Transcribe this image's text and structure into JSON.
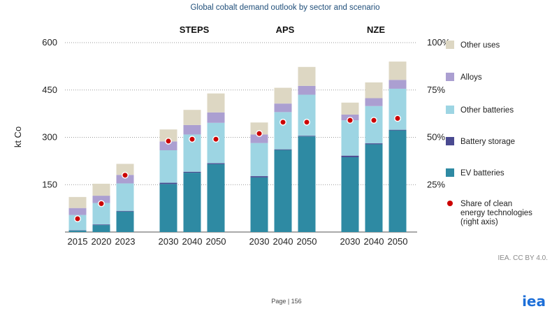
{
  "chart_data": {
    "type": "bar",
    "stacked": true,
    "title": "Global cobalt demand outlook by sector and scenario",
    "ylabel": "kt Co",
    "ylim": [
      0,
      600
    ],
    "y_ticks": [
      "150",
      "300",
      "450",
      "600"
    ],
    "y2lim": [
      0,
      1
    ],
    "y2_ticks": [
      "25%",
      "50%",
      "75%",
      "100%"
    ],
    "groups": [
      {
        "name": "",
        "categories": [
          "2015",
          "2020",
          "2023"
        ]
      },
      {
        "name": "STEPS",
        "categories": [
          "2030",
          "2040",
          "2050"
        ]
      },
      {
        "name": "APS",
        "categories": [
          "2030",
          "2040",
          "2050"
        ]
      },
      {
        "name": "NZE",
        "categories": [
          "2030",
          "2040",
          "2050"
        ]
      }
    ],
    "series": [
      {
        "name": "EV batteries",
        "color": "#2e8aa3",
        "values": [
          5,
          22,
          65,
          152,
          188,
          215,
          173,
          260,
          303,
          237,
          278,
          322
        ]
      },
      {
        "name": "Battery storage",
        "color": "#4a4a90",
        "values": [
          1,
          2,
          2,
          4,
          3,
          3,
          4,
          2,
          2,
          5,
          3,
          2
        ]
      },
      {
        "name": "Other batteries",
        "color": "#9dd5e3",
        "values": [
          48,
          68,
          87,
          103,
          118,
          128,
          105,
          118,
          130,
          112,
          118,
          130
        ]
      },
      {
        "name": "Alloys",
        "color": "#ab9fd1",
        "values": [
          22,
          23,
          27,
          28,
          30,
          33,
          27,
          27,
          28,
          18,
          25,
          28
        ]
      },
      {
        "name": "Other uses",
        "color": "#ddd7c3",
        "values": [
          35,
          38,
          35,
          38,
          48,
          60,
          38,
          50,
          60,
          38,
          50,
          58
        ]
      }
    ],
    "share": {
      "name": "Share of clean energy technologies (right axis)",
      "color": "#cc0000",
      "values": [
        0.07,
        0.15,
        0.3,
        0.48,
        0.49,
        0.49,
        0.52,
        0.58,
        0.58,
        0.59,
        0.59,
        0.6
      ]
    },
    "legend_order": [
      "Other uses",
      "Alloys",
      "Other batteries",
      "Battery storage",
      "EV batteries",
      "Share of clean energy technologies (right axis)"
    ],
    "legend_lines": [
      [
        "Other uses"
      ],
      [
        "Alloys"
      ],
      [
        "Other batteries"
      ],
      [
        "Battery storage"
      ],
      [
        "EV batteries"
      ],
      [
        "Share of clean",
        "energy technologies",
        "(right axis)"
      ]
    ]
  },
  "footer": {
    "page": "Page | 156",
    "credit": "IEA. CC BY 4.0.",
    "brand": "iea"
  }
}
